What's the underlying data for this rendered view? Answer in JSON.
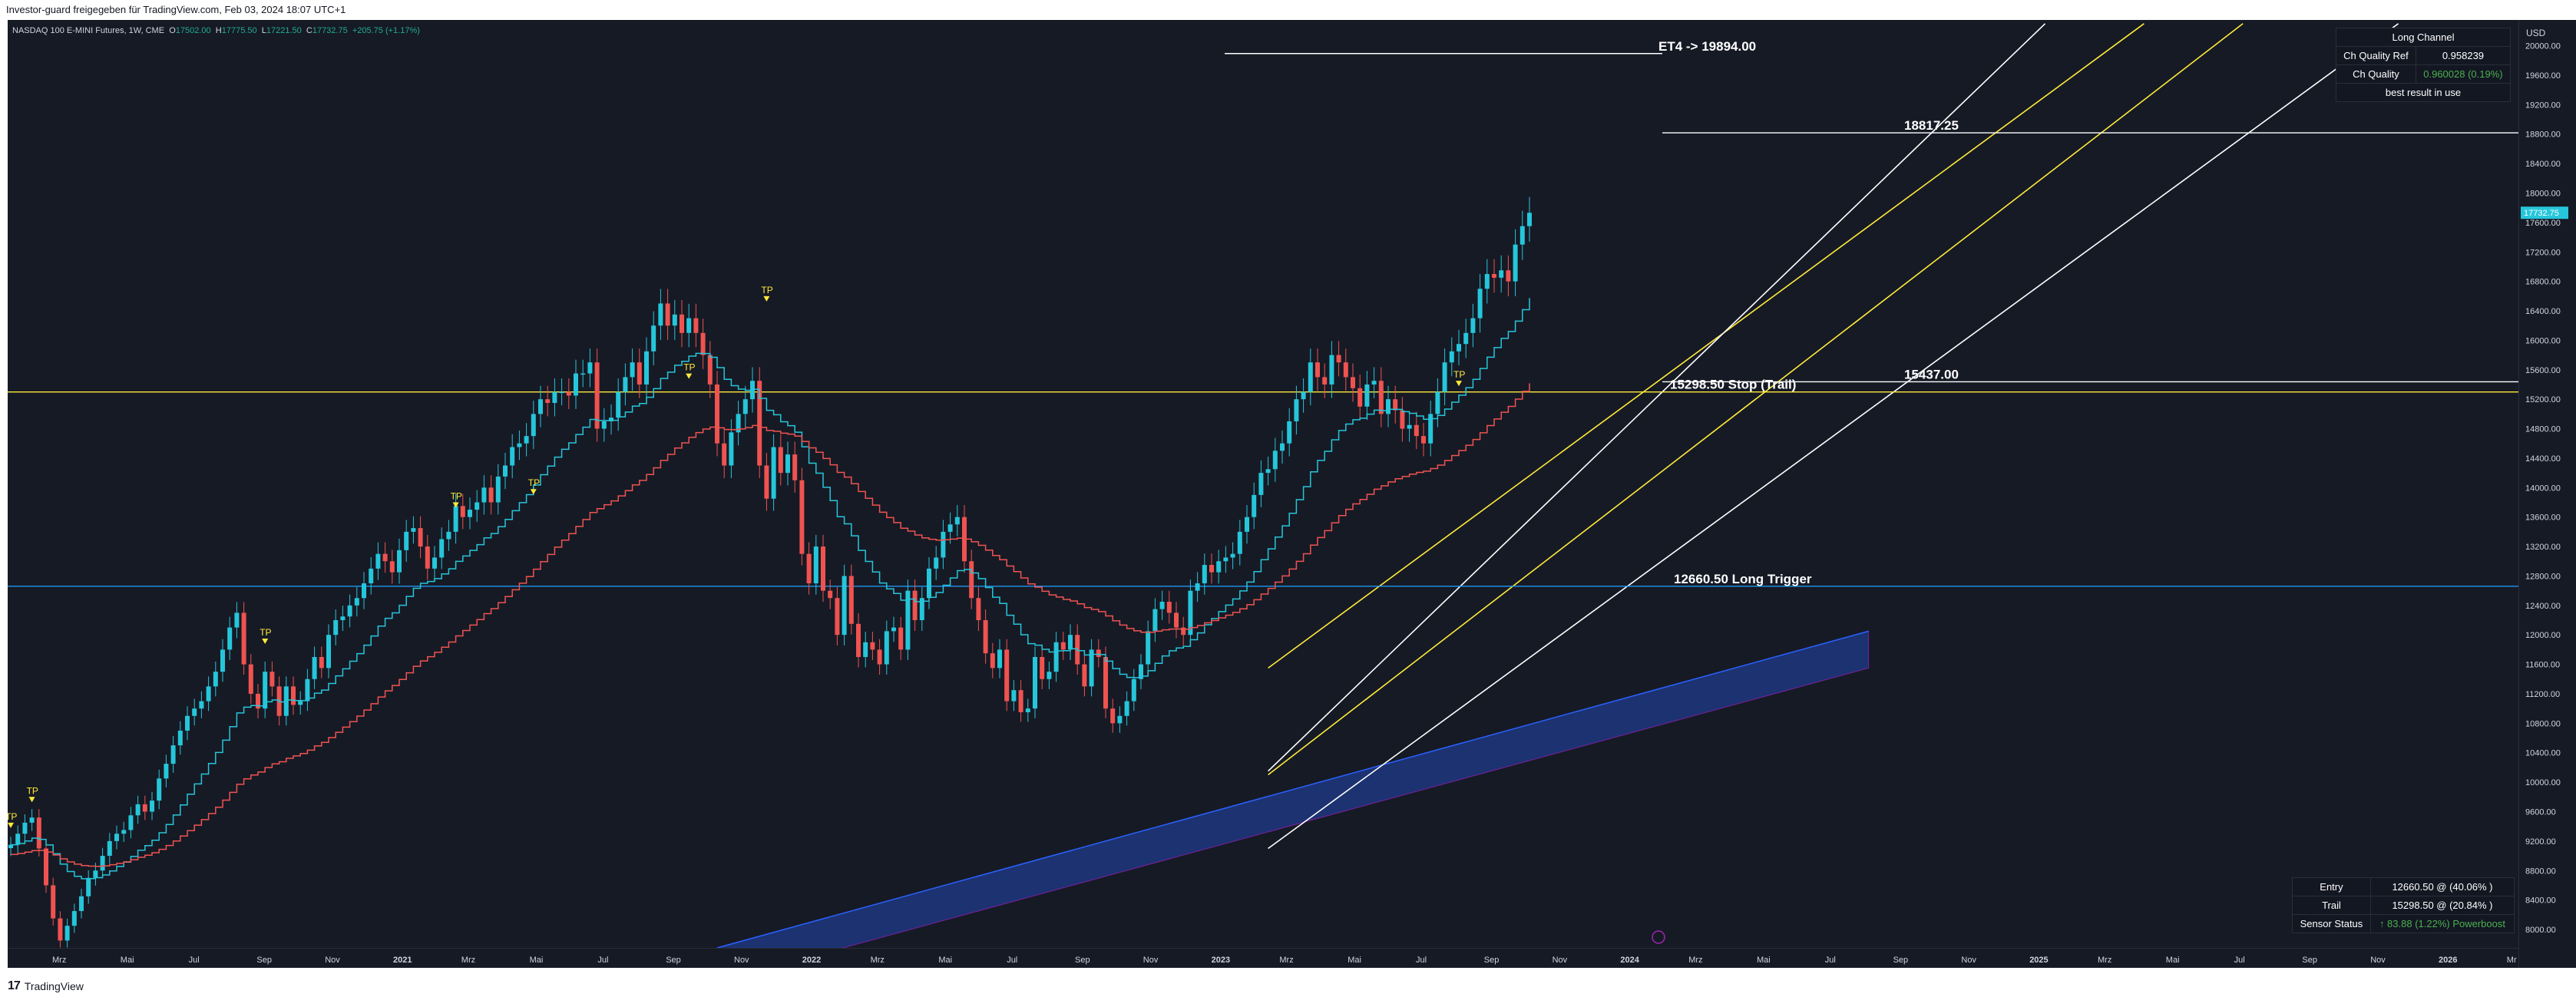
{
  "header": {
    "shared_by": "Investor-guard freigegeben für TradingView.com, Feb 03, 2024 18:07 UTC+1"
  },
  "legend": {
    "symbol": "NASDAQ 100 E-MINI Futures, 1W, CME",
    "open_label": "O",
    "open": "17502.00",
    "high_label": "H",
    "high": "17775.50",
    "low_label": "L",
    "low": "17221.50",
    "close_label": "C",
    "close": "17732.75",
    "change": "+205.75 (+1.17%)"
  },
  "currency": "USD",
  "footer": {
    "brand_mark": "17",
    "brand": "TradingView"
  },
  "channel_table": {
    "title": "Long Channel",
    "rows": [
      {
        "label": "Ch Quality Ref",
        "value": "0.958239"
      },
      {
        "label": "Ch Quality",
        "value": "0.960028 (0.19%)"
      }
    ],
    "footer": "best result in use",
    "colors": {
      "quality_value": "#4caf50"
    }
  },
  "status_table": {
    "rows": [
      {
        "label": "Entry",
        "value": "12660.50 @ (40.06% )"
      },
      {
        "label": "Trail",
        "value": "15298.50 @ (20.84% )"
      },
      {
        "label": "Sensor Status",
        "value": "↑ 83.88 (1.22%)  Powerboost"
      }
    ],
    "colors": {
      "sensor_value": "#4caf50"
    }
  },
  "chart_data": {
    "type": "candlestick",
    "y_ticks": [
      8000,
      8400,
      8800,
      9200,
      9600,
      10000,
      10400,
      10800,
      11200,
      11600,
      12000,
      12400,
      12800,
      13200,
      13600,
      14000,
      14400,
      14800,
      15200,
      15600,
      16000,
      16400,
      16800,
      17200,
      17600,
      18000,
      18400,
      18800,
      19200,
      19600,
      20000
    ],
    "y_tick_labels": [
      "8000.00",
      "8400.00",
      "8800.00",
      "9200.00",
      "9600.00",
      "10000.00",
      "10400.00",
      "10800.00",
      "11200.00",
      "11600.00",
      "12000.00",
      "12400.00",
      "12800.00",
      "13200.00",
      "13600.00",
      "14000.00",
      "14400.00",
      "14800.00",
      "15200.00",
      "15600.00",
      "16000.00",
      "16400.00",
      "16800.00",
      "17200.00",
      "17600.00",
      "18000.00",
      "18400.00",
      "18800.00",
      "19200.00",
      "19600.00",
      "20000.00"
    ],
    "ylim": [
      7750,
      20350
    ],
    "time_ticks": [
      "Mrz",
      "Mai",
      "Jul",
      "Sep",
      "Nov",
      "2021",
      "Mrz",
      "Mai",
      "Jul",
      "Sep",
      "Nov",
      "2022",
      "Mrz",
      "Mai",
      "Jul",
      "Sep",
      "Nov",
      "2023",
      "Mrz",
      "Mai",
      "Jul",
      "Sep",
      "Nov",
      "2024",
      "Mrz",
      "Mai",
      "Jul",
      "Sep",
      "Nov",
      "2025",
      "Mrz",
      "Mai",
      "Jul",
      "Sep",
      "Nov",
      "2026",
      "Mr"
    ],
    "time_ticks_bold": [
      "2021",
      "2022",
      "2023",
      "2024",
      "2025",
      "2026"
    ],
    "last_price_label": "17732.75",
    "horizontal_levels": [
      {
        "label": "ET4 -> 19894.00",
        "value": 19894.0,
        "color": "#ffffff"
      },
      {
        "label": "18817.25",
        "value": 18817.25,
        "color": "#ffffff"
      },
      {
        "label": "15437.00",
        "value": 15437.0,
        "color": "#ffffff"
      },
      {
        "label": "15298.50  Stop (Trail)",
        "value": 15298.5,
        "color": "#ffeb3b"
      },
      {
        "label": "12660.50  Long Trigger",
        "value": 12660.5,
        "color": "#2196f3"
      }
    ],
    "tp_label": "TP",
    "tp_markers": [
      {
        "week": 0,
        "price": 9450
      },
      {
        "week": 3,
        "price": 9800
      },
      {
        "week": 36,
        "price": 11950
      },
      {
        "week": 63,
        "price": 13800
      },
      {
        "week": 74,
        "price": 13980
      },
      {
        "week": 96,
        "price": 15550
      },
      {
        "week": 107,
        "price": 16600
      },
      {
        "week": 205,
        "price": 15450
      }
    ],
    "weekly_closes": [
      9150,
      9300,
      9450,
      9520,
      9100,
      8600,
      8150,
      7850,
      8050,
      8250,
      8450,
      8700,
      8800,
      9000,
      9200,
      9300,
      9350,
      9550,
      9700,
      9600,
      9750,
      10050,
      10250,
      10500,
      10700,
      10900,
      11000,
      11100,
      11300,
      11500,
      11800,
      12100,
      12300,
      11600,
      11200,
      11000,
      11500,
      11300,
      10900,
      11300,
      11050,
      11100,
      11400,
      11700,
      11550,
      12000,
      12200,
      12250,
      12400,
      12500,
      12700,
      12900,
      13100,
      13000,
      12850,
      13150,
      13400,
      13450,
      13200,
      12900,
      13050,
      13300,
      13400,
      13750,
      13600,
      13700,
      13800,
      14000,
      13800,
      14150,
      14300,
      14550,
      14600,
      14700,
      15000,
      15200,
      15150,
      15300,
      15300,
      15250,
      15550,
      15550,
      15700,
      14800,
      14900,
      14950,
      15300,
      15500,
      15700,
      15400,
      15850,
      16200,
      16500,
      16200,
      16350,
      16100,
      16300,
      16100,
      15800,
      15400,
      14600,
      14300,
      14750,
      15000,
      15200,
      15450,
      14300,
      13850,
      14550,
      14200,
      14450,
      14100,
      13100,
      12700,
      13200,
      12600,
      12500,
      12000,
      12800,
      12150,
      11700,
      11900,
      11800,
      11600,
      12050,
      12100,
      11800,
      12600,
      12200,
      12500,
      12900,
      13050,
      13400,
      13500,
      13600,
      13000,
      12500,
      12200,
      11750,
      11550,
      11800,
      11100,
      11250,
      10950,
      11000,
      11700,
      11400,
      11500,
      11900,
      11800,
      12000,
      11600,
      11300,
      11800,
      11700,
      11000,
      10800,
      10900,
      11100,
      11400,
      11600,
      12050,
      12350,
      12450,
      12300,
      12100,
      12000,
      12600,
      12700,
      12950,
      12850,
      13000,
      13050,
      13100,
      13400,
      13600,
      13900,
      14200,
      14250,
      14500,
      14600,
      14900,
      15200,
      15300,
      15700,
      15500,
      15400,
      15800,
      15700,
      15500,
      15350,
      15100,
      15400,
      15450,
      15000,
      15200,
      15050,
      14800,
      14850,
      14700,
      14600,
      15000,
      15300,
      15700,
      15850,
      15950,
      16100,
      16300,
      16700,
      16900,
      16850,
      16950,
      16800,
      17300,
      17550,
      17732
    ],
    "ma_fast_last": 15950,
    "ma_slow_last": 15298.5,
    "channel_lines": [
      {
        "color": "#ffffff",
        "from": {
          "week": 178,
          "price": 9100
        },
        "to": {
          "week": 338,
          "price": 20300
        }
      },
      {
        "color": "#ffeb3b",
        "from": {
          "week": 178,
          "price": 10100
        },
        "to": {
          "week": 316,
          "price": 20300
        }
      },
      {
        "color": "#ffeb3b",
        "from": {
          "week": 178,
          "price": 11550
        },
        "to": {
          "week": 302,
          "price": 20300
        }
      },
      {
        "color": "#ffffff",
        "from": {
          "week": 178,
          "price": 10150
        },
        "to": {
          "week": 288,
          "price": 20300
        }
      }
    ],
    "band": {
      "color": "#2962ff",
      "from_week": 100,
      "to_week": 263,
      "upper_start": 7750,
      "upper_end": 12050,
      "lower_start": 7700,
      "lower_end": 11550
    },
    "price_line_colors": {
      "up": "#26c6da",
      "down": "#ef5350",
      "fast_ma": "#26c6da",
      "slow_ma": "#ef5350"
    }
  }
}
